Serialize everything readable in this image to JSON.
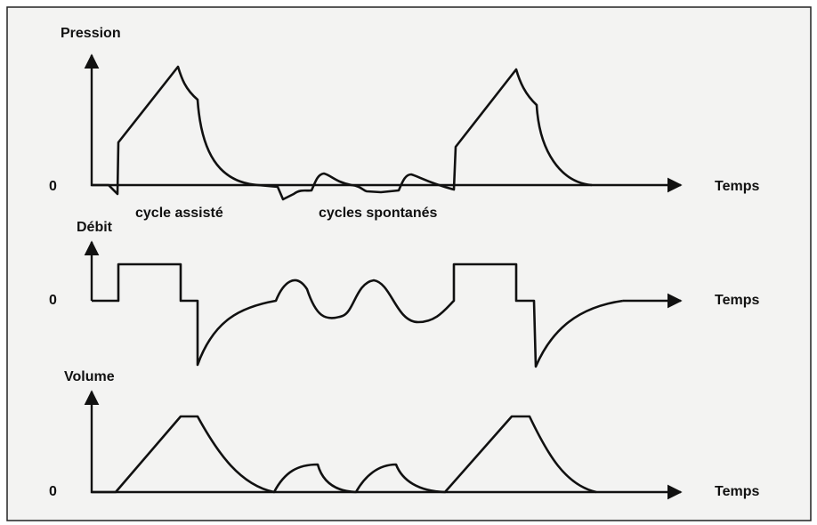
{
  "panels": [
    {
      "y_label": "Pression",
      "zero_label": "0",
      "x_label": "Temps"
    },
    {
      "y_label": "Débit",
      "zero_label": "0",
      "x_label": "Temps"
    },
    {
      "y_label": "Volume",
      "zero_label": "0",
      "x_label": "Temps"
    }
  ],
  "annotations": [
    "cycle assisté",
    "cycles spontanés"
  ]
}
